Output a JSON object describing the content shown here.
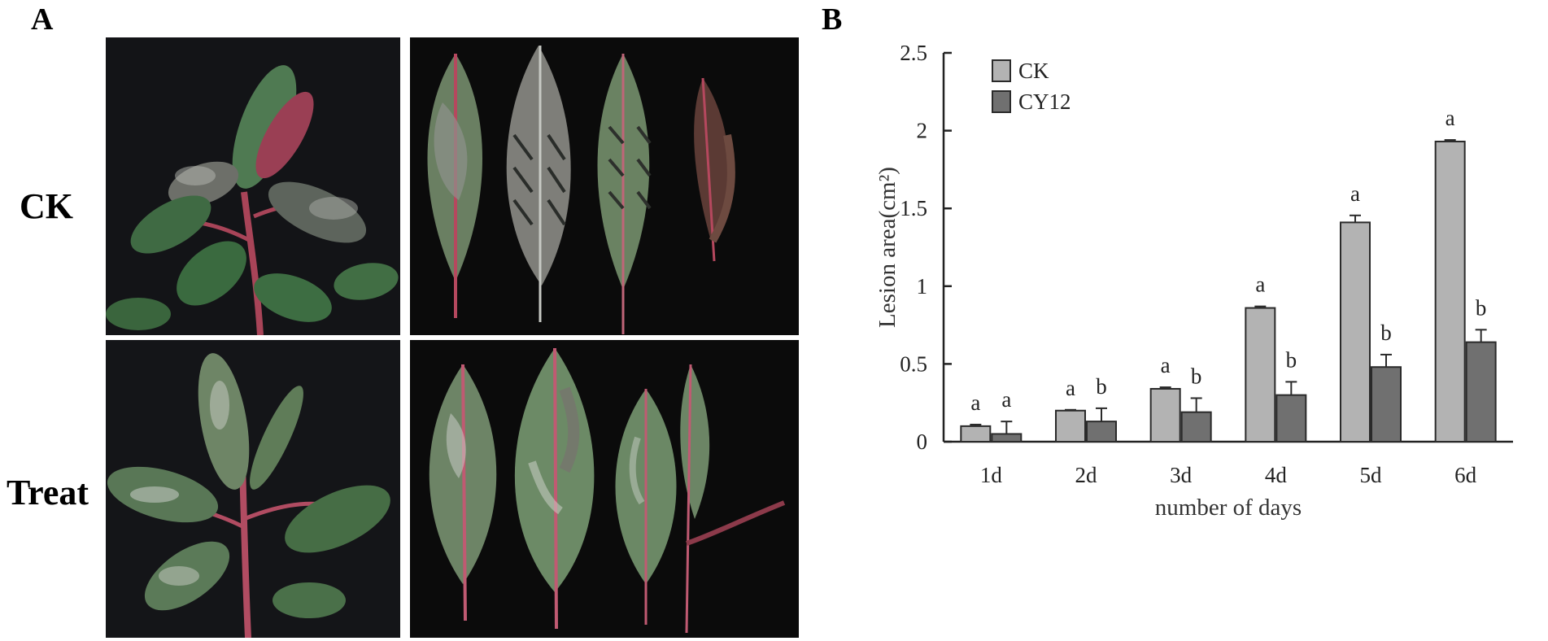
{
  "panel_labels": {
    "a": "A",
    "b": "B"
  },
  "row_labels": {
    "control": "CK",
    "treatment": "Treat"
  },
  "colors": {
    "ck_bar": "#b3b3b3",
    "cy12_bar": "#707070",
    "bar_stroke": "#2a2a2a",
    "photo_background": "#0b0b0b",
    "leaf_green": "#5f7a5c",
    "leaf_dark": "#3c4a3a",
    "stem_red": "#b0445a",
    "mildew_white": "#d8dad6"
  },
  "chart_data": {
    "type": "bar",
    "xlabel": "number of days",
    "ylabel": "Lesion area(cm²)",
    "ylim": [
      0,
      2.5
    ],
    "yticks": [
      "0",
      "0.5",
      "1",
      "1.5",
      "2",
      "2.5"
    ],
    "categories": [
      "1d",
      "2d",
      "3d",
      "4d",
      "5d",
      "6d"
    ],
    "legend_placement": "top-left",
    "grid": false,
    "series": [
      {
        "name": "CK",
        "values": [
          0.1,
          0.2,
          0.34,
          0.86,
          1.41,
          1.93
        ],
        "errors": [
          0.01,
          0.005,
          0.01,
          0.01,
          0.045,
          0.01
        ],
        "labels": [
          "a",
          "a",
          "a",
          "a",
          "a",
          "a"
        ]
      },
      {
        "name": "CY12",
        "values": [
          0.05,
          0.13,
          0.19,
          0.3,
          0.48,
          0.64
        ],
        "errors": [
          0.08,
          0.085,
          0.09,
          0.085,
          0.08,
          0.08
        ],
        "labels": [
          "a",
          "b",
          "b",
          "b",
          "b",
          "b"
        ]
      }
    ]
  }
}
